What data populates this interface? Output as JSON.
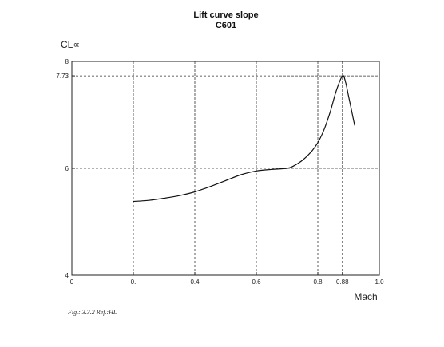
{
  "chart_data": {
    "type": "line",
    "title": "Lift curve slope",
    "subtitle": "C601",
    "ylabel": "CL∝",
    "xlabel": "Mach",
    "xlim": [
      0,
      1.0
    ],
    "ylim": [
      4,
      8
    ],
    "x_ticks": [
      {
        "value": 0,
        "label": "0"
      },
      {
        "value": 0.2,
        "label": "0."
      },
      {
        "value": 0.4,
        "label": "0.4"
      },
      {
        "value": 0.6,
        "label": "0.6"
      },
      {
        "value": 0.8,
        "label": "0.8"
      },
      {
        "value": 0.88,
        "label": "0.88"
      },
      {
        "value": 1.0,
        "label": "1.0"
      }
    ],
    "y_ticks": [
      {
        "value": 4,
        "label": "4"
      },
      {
        "value": 6,
        "label": "6"
      },
      {
        "value": 7.73,
        "label": "7.73"
      },
      {
        "value": 8,
        "label": "8"
      }
    ],
    "grid": true,
    "series": [
      {
        "x": [
          0.2,
          0.25,
          0.3,
          0.35,
          0.4,
          0.45,
          0.5,
          0.55,
          0.6,
          0.65,
          0.7,
          0.72,
          0.75,
          0.78,
          0.8,
          0.82,
          0.84,
          0.86,
          0.88,
          0.89,
          0.9,
          0.91,
          0.92
        ],
        "y": [
          5.38,
          5.4,
          5.44,
          5.49,
          5.56,
          5.66,
          5.77,
          5.88,
          5.95,
          5.98,
          6.0,
          6.04,
          6.15,
          6.32,
          6.48,
          6.72,
          7.05,
          7.45,
          7.73,
          7.62,
          7.35,
          7.07,
          6.8
        ]
      }
    ]
  },
  "caption": "Fig.: 3.3.2 Ref.:HL"
}
